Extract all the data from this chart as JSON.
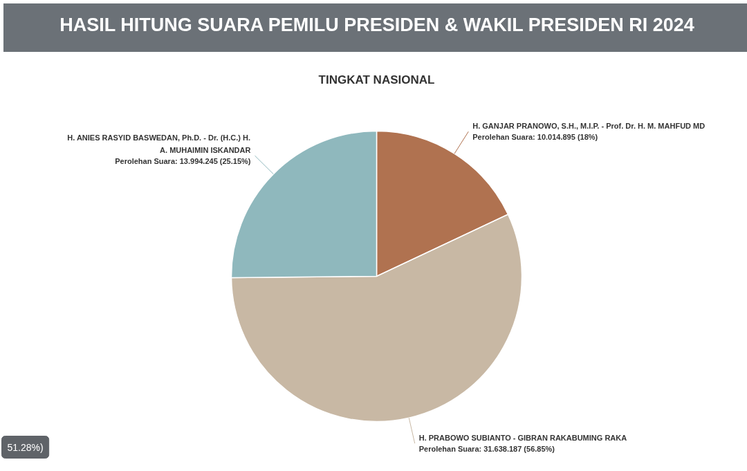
{
  "chart_data": {
    "type": "pie",
    "title": "HASIL HITUNG SUARA PEMILU PRESIDEN & WAKIL PRESIDEN RI 2024",
    "subtitle": "TINGKAT NASIONAL",
    "categories": [
      "H. GANJAR PRANOWO, S.H., M.I.P. - Prof. Dr. H. M. MAHFUD MD",
      "H. PRABOWO SUBIANTO - GIBRAN RAKABUMING RAKA",
      "H. ANIES RASYID BASWEDAN, Ph.D. - Dr. (H.C.) H. A. MUHAIMIN ISKANDAR"
    ],
    "values": [
      10014895,
      31638187,
      13994245
    ],
    "colors": [
      "#b07250",
      "#c8b8a4",
      "#8fb8bd"
    ],
    "value_labels": [
      "Perolehan Suara: 10.014.895 (18%)",
      "Perolehan Suara: 31.638.187 (56.85%)",
      "Perolehan Suara: 13.994.245 (25.15%)"
    ],
    "annotations": [
      "51.28%)"
    ]
  }
}
